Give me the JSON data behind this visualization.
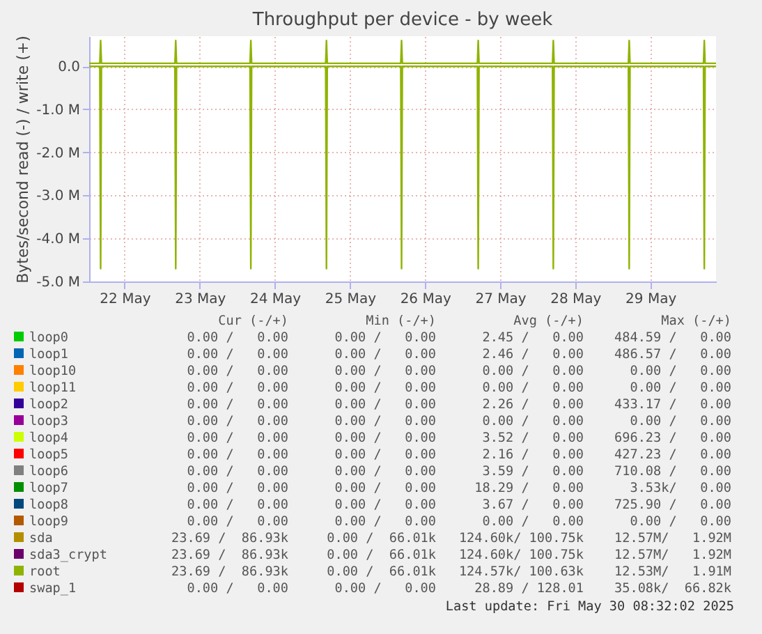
{
  "chart_data": {
    "type": "line",
    "title": "Throughput per device - by week",
    "ylabel": "Bytes/second read (-) / write (+)",
    "x": [
      "2025-05-22T00:40",
      "2025-05-22T04:05",
      "2025-05-22T04:20",
      "2025-05-22T04:35",
      "2025-05-23T04:05",
      "2025-05-23T04:20",
      "2025-05-23T04:35",
      "2025-05-24T04:05",
      "2025-05-24T04:20",
      "2025-05-24T04:35",
      "2025-05-25T04:15",
      "2025-05-25T04:30",
      "2025-05-25T04:45",
      "2025-05-26T04:15",
      "2025-05-26T04:30",
      "2025-05-26T04:45",
      "2025-05-27T04:45",
      "2025-05-27T05:00",
      "2025-05-27T05:15",
      "2025-05-28T04:45",
      "2025-05-28T05:00",
      "2025-05-28T05:15",
      "2025-05-29T05:00",
      "2025-05-29T05:15",
      "2025-05-29T05:30",
      "2025-05-30T05:00",
      "2025-05-30T05:15",
      "2025-05-30T05:30",
      "2025-05-30T09:00"
    ],
    "xlim": [
      "2025-05-22T00:40",
      "2025-05-30T09:00"
    ],
    "xticks": [
      {
        "value": "2025-05-22T12:00",
        "label": "22 May"
      },
      {
        "value": "2025-05-23T12:00",
        "label": "23 May"
      },
      {
        "value": "2025-05-24T12:00",
        "label": "24 May"
      },
      {
        "value": "2025-05-25T12:00",
        "label": "25 May"
      },
      {
        "value": "2025-05-26T12:00",
        "label": "26 May"
      },
      {
        "value": "2025-05-27T12:00",
        "label": "27 May"
      },
      {
        "value": "2025-05-28T12:00",
        "label": "28 May"
      },
      {
        "value": "2025-05-29T12:00",
        "label": "29 May"
      }
    ],
    "ylim": [
      -5000000,
      700000
    ],
    "yticks": [
      {
        "value": 0,
        "label": "0.0"
      },
      {
        "value": -1000000,
        "label": "-1.0 M"
      },
      {
        "value": -2000000,
        "label": "-2.0 M"
      },
      {
        "value": -3000000,
        "label": "-3.0 M"
      },
      {
        "value": -4000000,
        "label": "-4.0 M"
      },
      {
        "value": -5000000,
        "label": "-5.0 M"
      }
    ],
    "grid": true,
    "legend": "bottom",
    "series": [
      {
        "name": "loop0",
        "color": "#00cc00",
        "values": [
          null,
          null,
          null,
          null,
          null,
          null,
          null,
          null,
          null,
          null,
          null,
          null,
          null,
          null,
          null,
          null,
          null,
          null,
          null,
          null,
          null,
          null,
          null,
          null,
          null,
          null,
          null,
          null,
          null
        ]
      },
      {
        "name": "loop1",
        "color": "#0066b3",
        "values": [
          null,
          null,
          null,
          null,
          null,
          null,
          null,
          null,
          null,
          null,
          null,
          null,
          null,
          null,
          null,
          null,
          null,
          null,
          null,
          null,
          null,
          null,
          null,
          null,
          null,
          null,
          null,
          null,
          null
        ]
      },
      {
        "name": "loop10",
        "color": "#ff8000",
        "values": [
          null,
          null,
          null,
          null,
          null,
          null,
          null,
          null,
          null,
          null,
          null,
          null,
          null,
          null,
          null,
          null,
          null,
          null,
          null,
          null,
          null,
          null,
          null,
          null,
          null,
          null,
          null,
          null,
          null
        ]
      },
      {
        "name": "loop11",
        "color": "#ffcc00",
        "values": [
          null,
          null,
          null,
          null,
          null,
          null,
          null,
          null,
          null,
          null,
          null,
          null,
          null,
          null,
          null,
          null,
          null,
          null,
          null,
          null,
          null,
          null,
          null,
          null,
          null,
          null,
          null,
          null,
          null
        ]
      },
      {
        "name": "loop2",
        "color": "#330099",
        "values": [
          null,
          null,
          null,
          null,
          null,
          null,
          null,
          null,
          null,
          null,
          null,
          null,
          null,
          null,
          null,
          null,
          null,
          null,
          null,
          null,
          null,
          null,
          null,
          null,
          null,
          null,
          null,
          null,
          null
        ]
      },
      {
        "name": "loop3",
        "color": "#990099",
        "values": [
          null,
          null,
          null,
          null,
          null,
          null,
          null,
          null,
          null,
          null,
          null,
          null,
          null,
          null,
          null,
          null,
          null,
          null,
          null,
          null,
          null,
          null,
          null,
          null,
          null,
          null,
          null,
          null,
          null
        ]
      },
      {
        "name": "loop4",
        "color": "#ccff00",
        "values": [
          null,
          null,
          null,
          null,
          null,
          null,
          null,
          null,
          null,
          null,
          null,
          null,
          null,
          null,
          null,
          null,
          null,
          null,
          null,
          null,
          null,
          null,
          null,
          null,
          null,
          null,
          null,
          null,
          null
        ]
      },
      {
        "name": "loop5",
        "color": "#ff0000",
        "values": [
          null,
          null,
          null,
          null,
          null,
          null,
          null,
          null,
          null,
          null,
          null,
          null,
          null,
          null,
          null,
          null,
          null,
          null,
          null,
          null,
          null,
          null,
          null,
          null,
          null,
          null,
          null,
          null,
          null
        ]
      },
      {
        "name": "loop6",
        "color": "#808080",
        "values": [
          null,
          null,
          null,
          null,
          null,
          null,
          null,
          null,
          null,
          null,
          null,
          null,
          null,
          null,
          null,
          null,
          null,
          null,
          null,
          null,
          null,
          null,
          null,
          null,
          null,
          null,
          null,
          null,
          null
        ]
      },
      {
        "name": "loop7",
        "color": "#008f00",
        "values": [
          null,
          null,
          null,
          null,
          null,
          null,
          null,
          null,
          null,
          null,
          null,
          null,
          null,
          null,
          null,
          null,
          null,
          null,
          null,
          null,
          null,
          null,
          null,
          null,
          null,
          null,
          null,
          null,
          null
        ]
      },
      {
        "name": "loop8",
        "color": "#00487d",
        "values": [
          null,
          null,
          null,
          null,
          null,
          null,
          null,
          null,
          null,
          null,
          null,
          null,
          null,
          null,
          null,
          null,
          null,
          null,
          null,
          null,
          null,
          null,
          null,
          null,
          null,
          null,
          null,
          null,
          null
        ]
      },
      {
        "name": "loop9",
        "color": "#b35a00",
        "values": [
          null,
          null,
          null,
          null,
          null,
          null,
          null,
          null,
          null,
          null,
          null,
          null,
          null,
          null,
          null,
          null,
          null,
          null,
          null,
          null,
          null,
          null,
          null,
          null,
          null,
          null,
          null,
          null,
          null
        ]
      },
      {
        "name": "sda",
        "color": "#b38f00",
        "values": [
          null,
          null,
          null,
          null,
          null,
          null,
          null,
          null,
          null,
          null,
          null,
          null,
          null,
          null,
          null,
          null,
          null,
          null,
          null,
          null,
          null,
          null,
          null,
          null,
          null,
          null,
          null,
          null,
          null
        ]
      },
      {
        "name": "sda3_crypt",
        "color": "#6b006b",
        "values": [
          null,
          null,
          null,
          null,
          null,
          null,
          null,
          null,
          null,
          null,
          null,
          null,
          null,
          null,
          null,
          null,
          null,
          null,
          null,
          null,
          null,
          null,
          null,
          null,
          null,
          null,
          null,
          null,
          null
        ]
      },
      {
        "name": "root",
        "color": "#8fb300",
        "values": [
          70000,
          70000,
          600000,
          70000,
          70000,
          600000,
          70000,
          70000,
          600000,
          70000,
          70000,
          600000,
          70000,
          70000,
          600000,
          70000,
          70000,
          600000,
          70000,
          70000,
          600000,
          70000,
          70000,
          600000,
          70000,
          70000,
          600000,
          70000,
          70000
        ]
      },
      {
        "color": "#8fb300",
        "values": [
          0,
          0,
          -4700000,
          0,
          0,
          -4700000,
          0,
          0,
          -4700000,
          0,
          0,
          -4700000,
          0,
          0,
          -4700000,
          0,
          0,
          -4700000,
          0,
          0,
          -4700000,
          0,
          0,
          -4700000,
          0,
          0,
          -4700000,
          0,
          0
        ]
      },
      {
        "name": "swap_1",
        "color": "#b30000",
        "values": [
          null,
          null,
          null,
          null,
          null,
          null,
          null,
          null,
          null,
          null,
          null,
          null,
          null,
          null,
          null,
          null,
          null,
          null,
          null,
          null,
          null,
          null,
          null,
          null,
          null,
          null,
          null,
          null,
          null
        ]
      }
    ],
    "annotations": [
      "Cur (-/+)",
      "Min (-/+)",
      "Avg (-/+)",
      "Max (-/+)",
      "0.00 /   0.00",
      "0.00 /   0.00",
      "2.45 /   0.00",
      "484.59 /   0.00",
      "0.00 /   0.00",
      "0.00 /   0.00",
      "2.46 /   0.00",
      "486.57 /   0.00",
      "0.00 /   0.00",
      "0.00 /   0.00",
      "0.00 /   0.00",
      "0.00 /   0.00",
      "0.00 /   0.00",
      "0.00 /   0.00",
      "0.00 /   0.00",
      "0.00 /   0.00",
      "0.00 /   0.00",
      "0.00 /   0.00",
      "2.26 /   0.00",
      "433.17 /   0.00",
      "0.00 /   0.00",
      "0.00 /   0.00",
      "0.00 /   0.00",
      "0.00 /   0.00",
      "0.00 /   0.00",
      "0.00 /   0.00",
      "3.52 /   0.00",
      "696.23 /   0.00",
      "0.00 /   0.00",
      "0.00 /   0.00",
      "2.16 /   0.00",
      "427.23 /   0.00",
      "0.00 /   0.00",
      "0.00 /   0.00",
      "3.59 /   0.00",
      "710.08 /   0.00",
      "0.00 /   0.00",
      "0.00 /   0.00",
      "18.29 /   0.00",
      "3.53k/   0.00",
      "0.00 /   0.00",
      "0.00 /   0.00",
      "3.67 /   0.00",
      "725.90 /   0.00",
      "0.00 /   0.00",
      "0.00 /   0.00",
      "0.00 /   0.00",
      "0.00 /   0.00",
      "23.69 /  86.93k",
      "0.00 /  66.01k",
      "124.60k/ 100.75k",
      "12.57M/   1.92M",
      "23.69 /  86.93k",
      "0.00 /  66.01k",
      "124.60k/ 100.75k",
      "12.57M/   1.92M",
      "23.69 /  86.93k",
      "0.00 /  66.01k",
      "124.57k/ 100.63k",
      "12.53M/   1.91M",
      "0.00 /   0.00",
      "0.00 /   0.00",
      "28.89 / 128.01",
      "35.08k/  66.82k",
      "Last update: Fri May 30 08:32:02 2025"
    ]
  }
}
